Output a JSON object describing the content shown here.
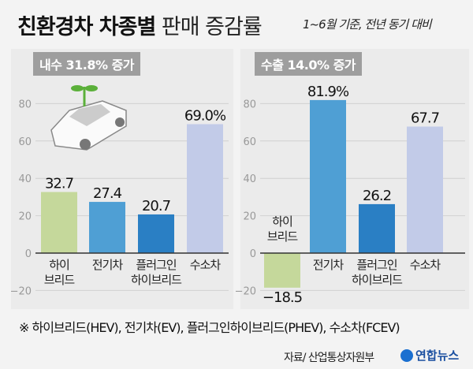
{
  "header": {
    "title_bold": "친환경차 차종별",
    "title_light": "판매 증감률",
    "subtitle": "1~6월 기준, 전년 동기 대비"
  },
  "colors": {
    "hybrid": "#c5d89b",
    "ev": "#4f9fd4",
    "phev": "#2a7fc4",
    "fcev": "#c2cbe8"
  },
  "chart_data": [
    {
      "type": "bar",
      "title": "내수  31.8% 증가",
      "categories": [
        "하이\n브리드",
        "전기차",
        "플러그인\n하이브리드",
        "수소차"
      ],
      "values": [
        32.7,
        27.4,
        20.7,
        69.0
      ],
      "value_labels": [
        "32.7",
        "27.4",
        "20.7",
        "69.0%"
      ],
      "yticks": [
        -20,
        0,
        20,
        40,
        60,
        80
      ],
      "ylim": [
        -20,
        80
      ],
      "grid": true
    },
    {
      "type": "bar",
      "title": "수출  14.0% 증가",
      "categories": [
        "하이\n브리드",
        "전기차",
        "플러그인\n하이브리드",
        "수소차"
      ],
      "values": [
        -18.5,
        81.9,
        26.2,
        67.7
      ],
      "value_labels": [
        "−18.5",
        "81.9%",
        "26.2",
        "67.7"
      ],
      "yticks": [
        -20,
        0,
        20,
        40,
        60,
        80
      ],
      "ylim": [
        -20,
        80
      ],
      "grid": true
    }
  ],
  "footer": {
    "note": "※ 하이브리드(HEV), 전기차(EV), 플러그인하이브리드(PHEV), 수소차(FCEV)",
    "source": "자료/ 산업통상자원부",
    "logo": "연합뉴스"
  }
}
